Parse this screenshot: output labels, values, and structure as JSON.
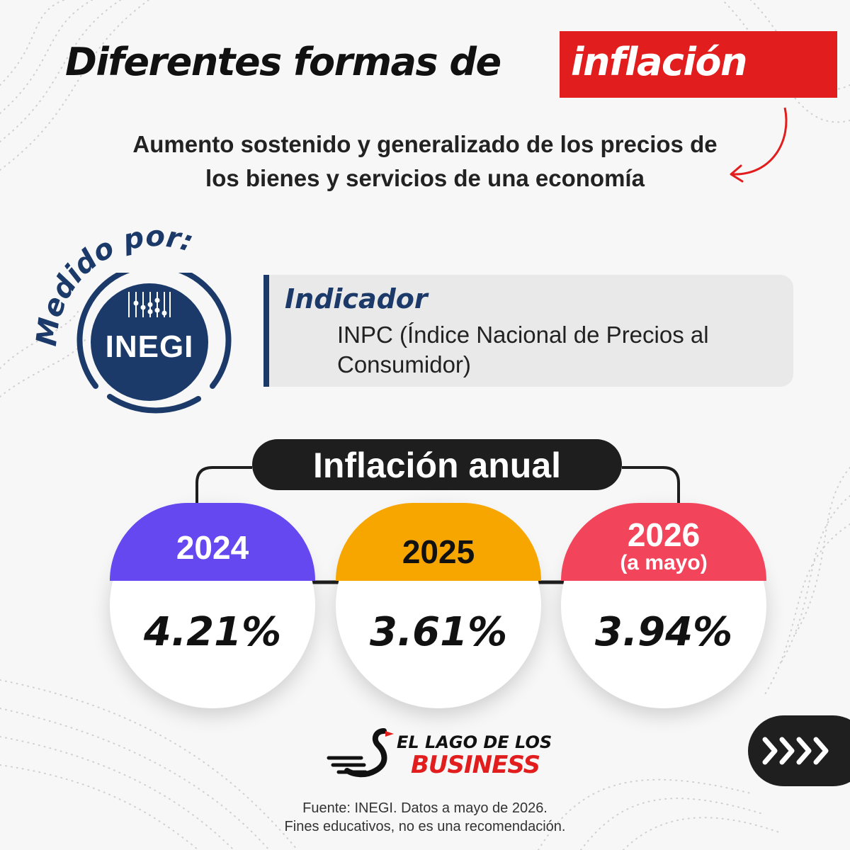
{
  "header": {
    "title_main": "Diferentes formas de",
    "title_highlight": "inflación",
    "subtitle": "Aumento sostenido y generalizado de los precios de los bienes y servicios de una economía"
  },
  "measured_by": {
    "label": "Medido por:",
    "logo_text": "INEGI"
  },
  "indicator": {
    "title": "Indicador",
    "description": "INPC (Índice Nacional de Precios al Consumidor)"
  },
  "annual_inflation": {
    "title": "Inflación anual",
    "items": [
      {
        "year": "2024",
        "note": "",
        "value": "4.21%",
        "color": "#6548f0"
      },
      {
        "year": "2025",
        "note": "",
        "value": "3.61%",
        "color": "#f7a600"
      },
      {
        "year": "2026",
        "note": "(a mayo)",
        "value": "3.94%",
        "color": "#f2455c"
      }
    ]
  },
  "colors": {
    "accent_red": "#e21d1d",
    "navy": "#1c3a69",
    "dark": "#1e1e1e"
  },
  "navigation": {
    "next_icon": "chevrons-right-icon"
  },
  "brand": {
    "line1": "EL LAGO DE LOS",
    "line2": "BUSINESS"
  },
  "footer": {
    "line1": "Fuente: INEGI. Datos a mayo de 2026.",
    "line2": "Fines educativos, no es una recomendación."
  }
}
